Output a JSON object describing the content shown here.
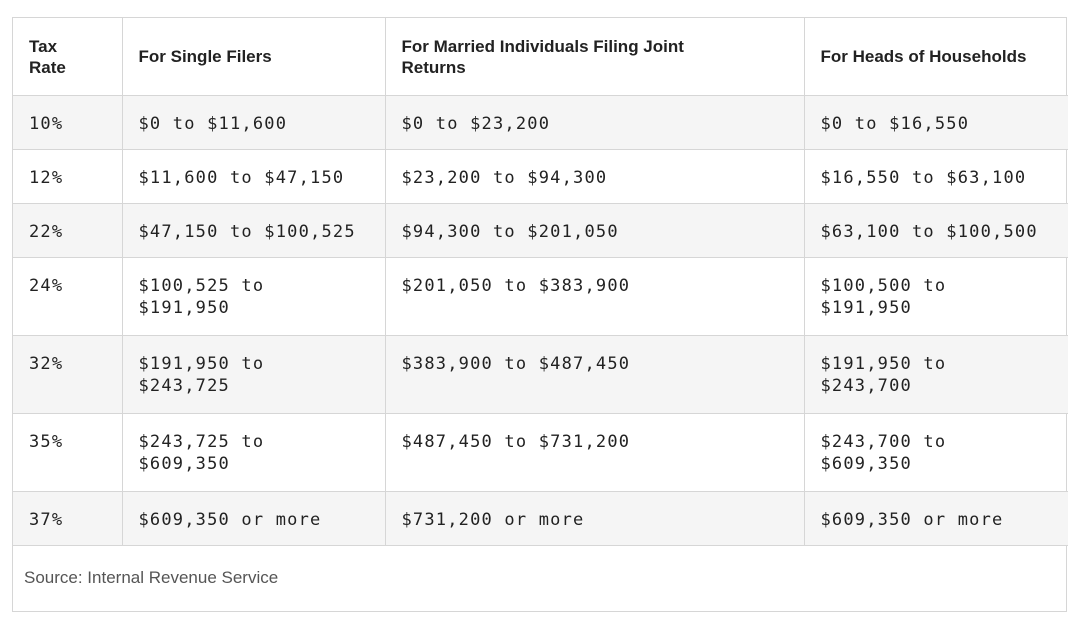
{
  "table": {
    "header": [
      "Tax Rate",
      "For Single Filers",
      "For Married Individuals Filing Joint Returns",
      "For Heads of Households"
    ],
    "rows": [
      [
        "10%",
        "$0 to $11,600",
        "$0 to $23,200",
        "$0 to $16,550"
      ],
      [
        "12%",
        "$11,600 to $47,150",
        "$23,200 to $94,300",
        "$16,550 to $63,100"
      ],
      [
        "22%",
        "$47,150 to $100,525",
        "$94,300 to $201,050",
        "$63,100 to $100,500"
      ],
      [
        "24%",
        "$100,525 to $191,950",
        "$201,050 to $383,900",
        "$100,500 to $191,950"
      ],
      [
        "32%",
        "$191,950 to $243,725",
        "$383,900 to $487,450",
        "$191,950 to $243,700"
      ],
      [
        "35%",
        "$243,725 to $609,350",
        "$487,450 to $731,200",
        "$243,700 to $609,350"
      ],
      [
        "37%",
        "$609,350 or more",
        "$731,200 or more",
        "$609,350 or more"
      ]
    ],
    "source": "Source: Internal Revenue Service"
  }
}
